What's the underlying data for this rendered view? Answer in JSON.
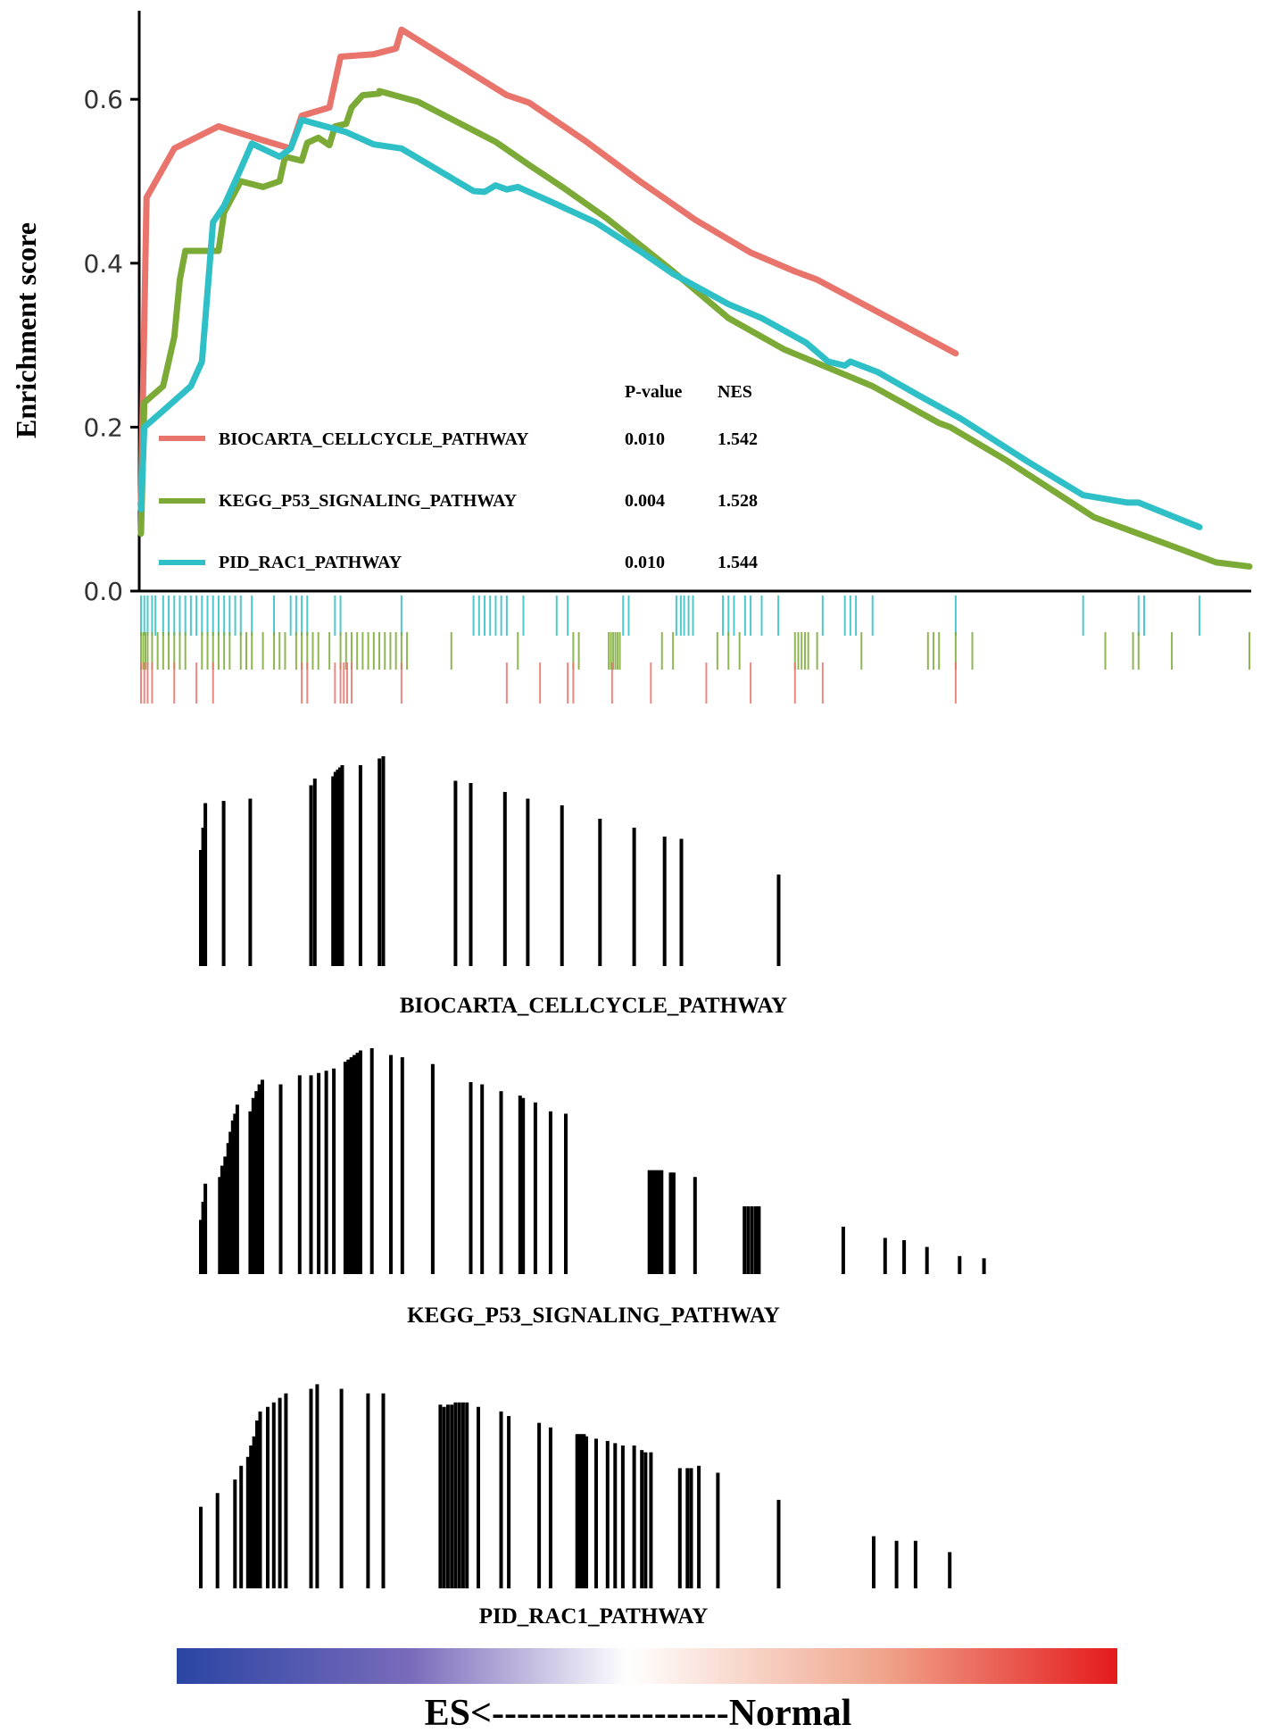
{
  "colors": {
    "biocarta": "#e8746b",
    "kegg": "#7caa36",
    "pid": "#2ec0c6",
    "axis": "#000000",
    "gradient_left": "#2a45a3",
    "gradient_mid": "#ffffff",
    "gradient_right": "#e41a1c"
  },
  "chart_data": {
    "type": "line",
    "ylabel": "Enrichment score",
    "xlabel": "",
    "ylim": [
      0,
      0.7
    ],
    "yticks": [
      {
        "value": 0.0,
        "label": "0.0"
      },
      {
        "value": 0.2,
        "label": "0.2"
      },
      {
        "value": 0.4,
        "label": "0.4"
      },
      {
        "value": 0.6,
        "label": "0.6"
      }
    ],
    "legend": {
      "placement": "inside-bottom-left",
      "headers": {
        "pvalue": "P-value",
        "nes": "NES"
      }
    },
    "series": [
      {
        "name": "BIOCARTA_CELLCYCLE_PATHWAY",
        "pvalue": "0.010",
        "nes": "1.542",
        "color_key": "biocarta",
        "points": [
          [
            0,
            0.11
          ],
          [
            0.5,
            0.48
          ],
          [
            3,
            0.54
          ],
          [
            7,
            0.567
          ],
          [
            11,
            0.55
          ],
          [
            13.5,
            0.54
          ],
          [
            14.5,
            0.58
          ],
          [
            17,
            0.59
          ],
          [
            18,
            0.652
          ],
          [
            21,
            0.655
          ],
          [
            23,
            0.662
          ],
          [
            23.5,
            0.685
          ],
          [
            33,
            0.605
          ],
          [
            35,
            0.596
          ],
          [
            40,
            0.55
          ],
          [
            45,
            0.5
          ],
          [
            50,
            0.453
          ],
          [
            55,
            0.413
          ],
          [
            59,
            0.39
          ],
          [
            61,
            0.38
          ],
          [
            73.5,
            0.29
          ]
        ]
      },
      {
        "name": "KEGG_P53_SIGNALING_PATHWAY",
        "pvalue": "0.004",
        "nes": "1.528",
        "color_key": "kegg",
        "points": [
          [
            0,
            0.07
          ],
          [
            0.3,
            0.23
          ],
          [
            2,
            0.25
          ],
          [
            3,
            0.31
          ],
          [
            3.5,
            0.38
          ],
          [
            4,
            0.415
          ],
          [
            7,
            0.415
          ],
          [
            7.5,
            0.462
          ],
          [
            9,
            0.5
          ],
          [
            11,
            0.493
          ],
          [
            12.5,
            0.5
          ],
          [
            13,
            0.53
          ],
          [
            14.5,
            0.525
          ],
          [
            15,
            0.547
          ],
          [
            16,
            0.553
          ],
          [
            17,
            0.544
          ],
          [
            17.5,
            0.567
          ],
          [
            18.5,
            0.57
          ],
          [
            19,
            0.59
          ],
          [
            20,
            0.605
          ],
          [
            21.5,
            0.607
          ],
          [
            21.5,
            0.61
          ],
          [
            25,
            0.597
          ],
          [
            32,
            0.548
          ],
          [
            35,
            0.52
          ],
          [
            38,
            0.493
          ],
          [
            42,
            0.455
          ],
          [
            48,
            0.39
          ],
          [
            53,
            0.333
          ],
          [
            58,
            0.295
          ],
          [
            66,
            0.25
          ],
          [
            72,
            0.205
          ],
          [
            73,
            0.2
          ],
          [
            78,
            0.16
          ],
          [
            86,
            0.09
          ],
          [
            93,
            0.055
          ],
          [
            97,
            0.035
          ],
          [
            100,
            0.03
          ]
        ]
      },
      {
        "name": "PID_RAC1_PATHWAY",
        "pvalue": "0.010",
        "nes": "1.544",
        "color_key": "pid",
        "points": [
          [
            0,
            0.1
          ],
          [
            0.3,
            0.2
          ],
          [
            2,
            0.22
          ],
          [
            4.5,
            0.25
          ],
          [
            5.5,
            0.28
          ],
          [
            6.5,
            0.45
          ],
          [
            7.5,
            0.47
          ],
          [
            9,
            0.515
          ],
          [
            10,
            0.546
          ],
          [
            12.5,
            0.53
          ],
          [
            13.5,
            0.54
          ],
          [
            14.5,
            0.575
          ],
          [
            18.5,
            0.56
          ],
          [
            21,
            0.545
          ],
          [
            23.5,
            0.54
          ],
          [
            30,
            0.488
          ],
          [
            31,
            0.487
          ],
          [
            32,
            0.495
          ],
          [
            33,
            0.49
          ],
          [
            34,
            0.493
          ],
          [
            34.5,
            0.49
          ],
          [
            37,
            0.475
          ],
          [
            41,
            0.45
          ],
          [
            45,
            0.415
          ],
          [
            48,
            0.387
          ],
          [
            53,
            0.35
          ],
          [
            56,
            0.333
          ],
          [
            58,
            0.318
          ],
          [
            60,
            0.303
          ],
          [
            62,
            0.28
          ],
          [
            63.5,
            0.275
          ],
          [
            64,
            0.28
          ],
          [
            66.5,
            0.267
          ],
          [
            70,
            0.24
          ],
          [
            74,
            0.21
          ],
          [
            80,
            0.158
          ],
          [
            85,
            0.117
          ],
          [
            89,
            0.108
          ],
          [
            90,
            0.108
          ],
          [
            95.5,
            0.078
          ]
        ]
      }
    ],
    "hit_ticks": {
      "pid": [
        0,
        0.3,
        0.6,
        1,
        1.3,
        2,
        2.5,
        3,
        3.5,
        4,
        4.5,
        5,
        5.5,
        6,
        6.5,
        7,
        7.5,
        8,
        8.5,
        9,
        10,
        12,
        13.5,
        14,
        14.5,
        15,
        17.5,
        18,
        23.5,
        30,
        30.5,
        31,
        31.5,
        32,
        32.5,
        33,
        34.5,
        37.5,
        38.5,
        43.5,
        44,
        48.3,
        48.7,
        49,
        49.4,
        49.8,
        52.5,
        53,
        53.5,
        54.5,
        55,
        56,
        57.5,
        61.5,
        63.5,
        64,
        64.5,
        66,
        73.5,
        85,
        90,
        90.5,
        95.5
      ],
      "kegg": [
        0,
        0.2,
        0.4,
        0.6,
        1,
        1.5,
        2,
        2.5,
        3,
        3.5,
        4,
        5.5,
        6,
        6.5,
        7,
        7.5,
        8,
        9,
        9.5,
        10,
        11,
        12,
        12.5,
        13,
        14,
        14.5,
        15,
        15.5,
        16,
        17,
        18,
        18.5,
        19,
        19.5,
        20,
        20.5,
        21,
        21.5,
        22,
        22.5,
        23,
        23.5,
        24,
        28,
        34,
        39,
        39.5,
        42.2,
        42.4,
        42.6,
        42.8,
        43,
        43.2,
        47,
        48,
        52,
        53,
        54,
        59,
        59.3,
        59.6,
        59.9,
        60.2,
        61,
        65,
        71,
        71.5,
        72,
        73.5,
        75,
        87,
        89.5,
        90,
        93,
        100
      ],
      "biocarta": [
        0,
        0.3,
        0.6,
        1,
        3,
        5,
        6.5,
        14.5,
        15,
        17.5,
        18,
        18.3,
        18.6,
        19,
        23.5,
        33,
        36,
        38.5,
        39,
        42.5,
        46,
        51,
        55,
        59,
        61.5,
        73.5
      ]
    },
    "panels": [
      {
        "title": "BIOCARTA_CELLCYCLE_PATHWAY",
        "bars": [
          [
            0,
            0.52
          ],
          [
            0.3,
            0.62
          ],
          [
            0.6,
            0.73
          ],
          [
            3,
            0.74
          ],
          [
            6.5,
            0.75
          ],
          [
            14.5,
            0.81
          ],
          [
            15,
            0.84
          ],
          [
            17.4,
            0.85
          ],
          [
            17.7,
            0.87
          ],
          [
            18,
            0.88
          ],
          [
            18.3,
            0.89
          ],
          [
            18.6,
            0.9
          ],
          [
            21,
            0.9
          ],
          [
            23.5,
            0.93
          ],
          [
            24,
            0.94
          ],
          [
            33.5,
            0.83
          ],
          [
            35.5,
            0.82
          ],
          [
            40,
            0.78
          ],
          [
            43,
            0.75
          ],
          [
            47.5,
            0.72
          ],
          [
            52.5,
            0.66
          ],
          [
            57,
            0.62
          ],
          [
            61,
            0.58
          ],
          [
            63.2,
            0.57
          ],
          [
            76,
            0.41
          ]
        ]
      },
      {
        "title": "KEGG_P53_SIGNALING_PATHWAY",
        "bars": [
          [
            0,
            0.24
          ],
          [
            0.3,
            0.32
          ],
          [
            0.6,
            0.4
          ],
          [
            2.5,
            0.43
          ],
          [
            2.8,
            0.48
          ],
          [
            3.2,
            0.52
          ],
          [
            3.6,
            0.58
          ],
          [
            3.9,
            0.63
          ],
          [
            4.2,
            0.68
          ],
          [
            4.5,
            0.71
          ],
          [
            4.8,
            0.75
          ],
          [
            6.5,
            0.72
          ],
          [
            6.9,
            0.78
          ],
          [
            7.3,
            0.81
          ],
          [
            7.7,
            0.84
          ],
          [
            8.1,
            0.86
          ],
          [
            10.5,
            0.84
          ],
          [
            13,
            0.88
          ],
          [
            14.5,
            0.88
          ],
          [
            15.5,
            0.89
          ],
          [
            16.5,
            0.9
          ],
          [
            17.5,
            0.91
          ],
          [
            19,
            0.94
          ],
          [
            19.4,
            0.95
          ],
          [
            19.8,
            0.96
          ],
          [
            20.2,
            0.97
          ],
          [
            20.6,
            0.98
          ],
          [
            21,
            0.99
          ],
          [
            22.5,
            1
          ],
          [
            25,
            0.97
          ],
          [
            26.5,
            0.96
          ],
          [
            30.5,
            0.93
          ],
          [
            35.5,
            0.85
          ],
          [
            37,
            0.84
          ],
          [
            39.5,
            0.81
          ],
          [
            42,
            0.79
          ],
          [
            42.4,
            0.78
          ],
          [
            44,
            0.76
          ],
          [
            46,
            0.72
          ],
          [
            48,
            0.71
          ],
          [
            59,
            0.46
          ],
          [
            59.4,
            0.46
          ],
          [
            59.8,
            0.46
          ],
          [
            60.2,
            0.46
          ],
          [
            60.6,
            0.46
          ],
          [
            61.8,
            0.45
          ],
          [
            62.2,
            0.45
          ],
          [
            65,
            0.43
          ],
          [
            71.5,
            0.3
          ],
          [
            72,
            0.3
          ],
          [
            72.5,
            0.3
          ],
          [
            73,
            0.3
          ],
          [
            73.4,
            0.3
          ],
          [
            84.5,
            0.21
          ],
          [
            90,
            0.16
          ],
          [
            92.5,
            0.15
          ],
          [
            95.5,
            0.12
          ],
          [
            99.8,
            0.08
          ],
          [
            103,
            0.07
          ]
        ]
      },
      {
        "title": "PID_RAC1_PATHWAY",
        "bars": [
          [
            0,
            0.36
          ],
          [
            2.2,
            0.42
          ],
          [
            4.5,
            0.48
          ],
          [
            5.3,
            0.54
          ],
          [
            6.2,
            0.58
          ],
          [
            6.6,
            0.63
          ],
          [
            7.0,
            0.67
          ],
          [
            7.4,
            0.74
          ],
          [
            7.8,
            0.78
          ],
          [
            8.8,
            0.8
          ],
          [
            9.6,
            0.82
          ],
          [
            10.4,
            0.84
          ],
          [
            11.2,
            0.86
          ],
          [
            14.5,
            0.88
          ],
          [
            15.3,
            0.9
          ],
          [
            18.5,
            0.88
          ],
          [
            22,
            0.86
          ],
          [
            24,
            0.86
          ],
          [
            31.5,
            0.81
          ],
          [
            32,
            0.8
          ],
          [
            32.5,
            0.81
          ],
          [
            33,
            0.81
          ],
          [
            33.5,
            0.82
          ],
          [
            34,
            0.82
          ],
          [
            34.5,
            0.82
          ],
          [
            35,
            0.82
          ],
          [
            36.5,
            0.8
          ],
          [
            39.5,
            0.78
          ],
          [
            40.5,
            0.76
          ],
          [
            44.5,
            0.73
          ],
          [
            46,
            0.71
          ],
          [
            49.5,
            0.68
          ],
          [
            49.8,
            0.68
          ],
          [
            50.1,
            0.68
          ],
          [
            50.4,
            0.68
          ],
          [
            50.7,
            0.67
          ],
          [
            52,
            0.66
          ],
          [
            53.5,
            0.65
          ],
          [
            54.5,
            0.64
          ],
          [
            55.5,
            0.63
          ],
          [
            57,
            0.63
          ],
          [
            58,
            0.61
          ],
          [
            58.5,
            0.6
          ],
          [
            59.2,
            0.6
          ],
          [
            63,
            0.53
          ],
          [
            64,
            0.53
          ],
          [
            64.5,
            0.53
          ],
          [
            65.5,
            0.54
          ],
          [
            68,
            0.51
          ],
          [
            76,
            0.39
          ],
          [
            88.5,
            0.23
          ],
          [
            91.5,
            0.21
          ],
          [
            94,
            0.21
          ],
          [
            98.5,
            0.16
          ]
        ]
      }
    ],
    "gradient_bar": {
      "label_left": "ES<",
      "label_mid": "-------------------",
      "label_right": "Normal"
    }
  }
}
